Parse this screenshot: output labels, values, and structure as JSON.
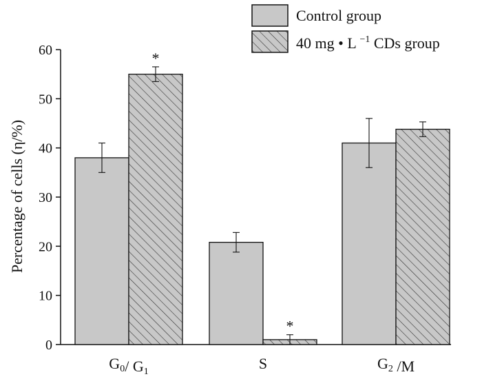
{
  "chart_data": {
    "type": "bar",
    "title": "",
    "xlabel": "",
    "ylabel": "Percentage of cells (η/%)",
    "ylim": [
      0,
      60
    ],
    "yticks": [
      0,
      10,
      20,
      30,
      40,
      50,
      60
    ],
    "grid": false,
    "legend_position": "top-right",
    "categories": [
      {
        "main": "G",
        "sub": "0",
        "sep": "/ ",
        "main2": "G",
        "sub2": "1",
        "tail": ""
      },
      {
        "main": "S",
        "sub": "",
        "sep": "",
        "main2": "",
        "sub2": "",
        "tail": ""
      },
      {
        "main": "G",
        "sub": "2",
        "sep": " /M",
        "main2": "",
        "sub2": "",
        "tail": ""
      }
    ],
    "series": [
      {
        "name": "Control group",
        "values": [
          38,
          20.8,
          41
        ],
        "errors": [
          3,
          2,
          5
        ],
        "pattern": "solid",
        "color": "#c8c8c8"
      },
      {
        "name": "40 mg·L⁻¹CDs group",
        "values": [
          55,
          1,
          43.8
        ],
        "errors": [
          1.5,
          1,
          1.5
        ],
        "pattern": "hatched",
        "color": "#c8c8c8"
      }
    ],
    "annotations": [
      {
        "series": 1,
        "category": 0,
        "text": "*"
      },
      {
        "series": 1,
        "category": 1,
        "text": "*"
      }
    ],
    "legend": {
      "control_label": "Control group",
      "cds_label_prefix": "40 mg",
      "cds_label_dot": "•",
      "cds_label_unit": "L",
      "cds_label_exp": "−1",
      "cds_label_suffix": "CDs group"
    }
  },
  "colors": {
    "bar_fill": "#c8c8c8",
    "stroke": "#111111"
  }
}
